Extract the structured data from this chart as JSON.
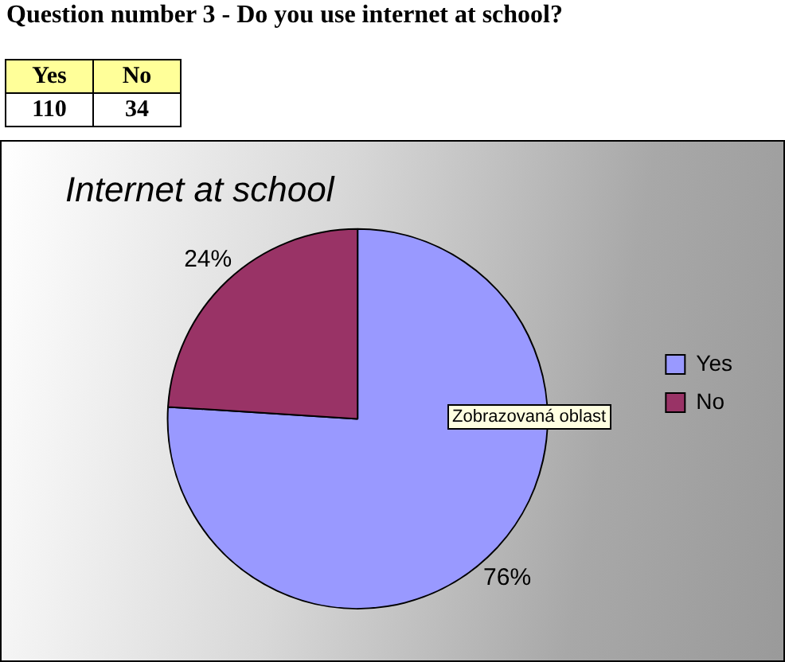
{
  "chart_data": {
    "type": "pie",
    "subtitle": "Question number 3 - Do you use internet at school?",
    "title": "Internet at school",
    "categories": [
      "Yes",
      "No"
    ],
    "values": [
      76,
      24
    ],
    "value_labels": [
      "76%",
      "24%"
    ],
    "colors": [
      "#9999ff",
      "#993366"
    ],
    "legend": "right",
    "annotations": [
      "110",
      "34",
      "Zobrazovaná oblast"
    ]
  }
}
